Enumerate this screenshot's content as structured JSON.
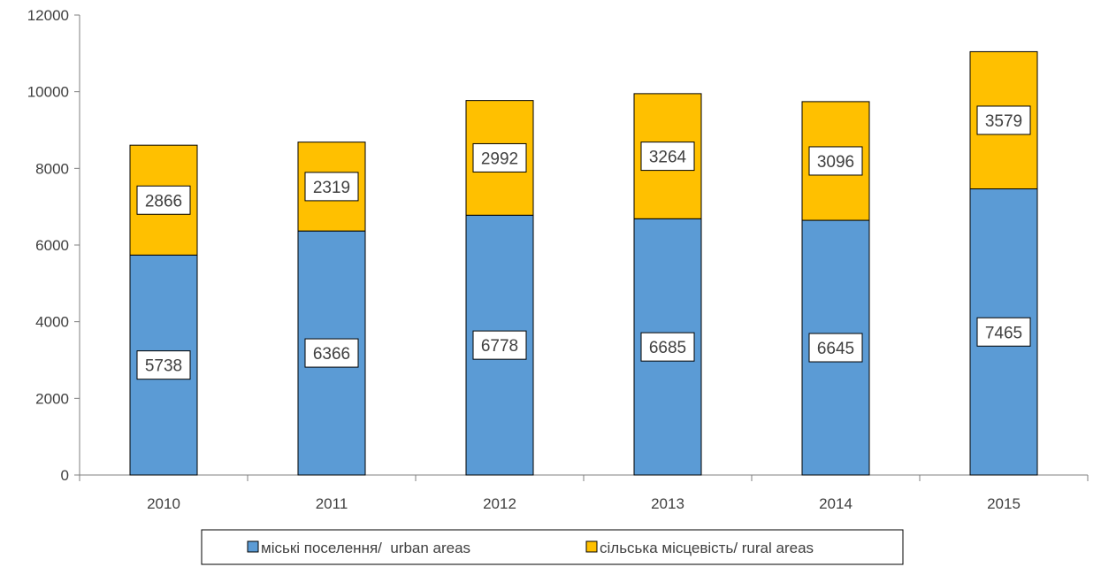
{
  "chart_data": {
    "type": "bar",
    "stacked": true,
    "categories": [
      "2010",
      "2011",
      "2012",
      "2013",
      "2014",
      "2015"
    ],
    "series": [
      {
        "name": "міські поселення/  urban areas",
        "color": "#5B9BD5",
        "values": [
          5738,
          6366,
          6778,
          6685,
          6645,
          7465
        ]
      },
      {
        "name": "сільська місцевість/ rural areas",
        "color": "#FFC000",
        "values": [
          2866,
          2319,
          2992,
          3264,
          3096,
          3579
        ]
      }
    ],
    "y_ticks": [
      "0",
      "2000",
      "4000",
      "6000",
      "8000",
      "10000",
      "12000"
    ],
    "ylim": [
      0,
      12000
    ],
    "grid": false,
    "legend_position": "bottom",
    "title": "",
    "xlabel": "",
    "ylabel": ""
  }
}
